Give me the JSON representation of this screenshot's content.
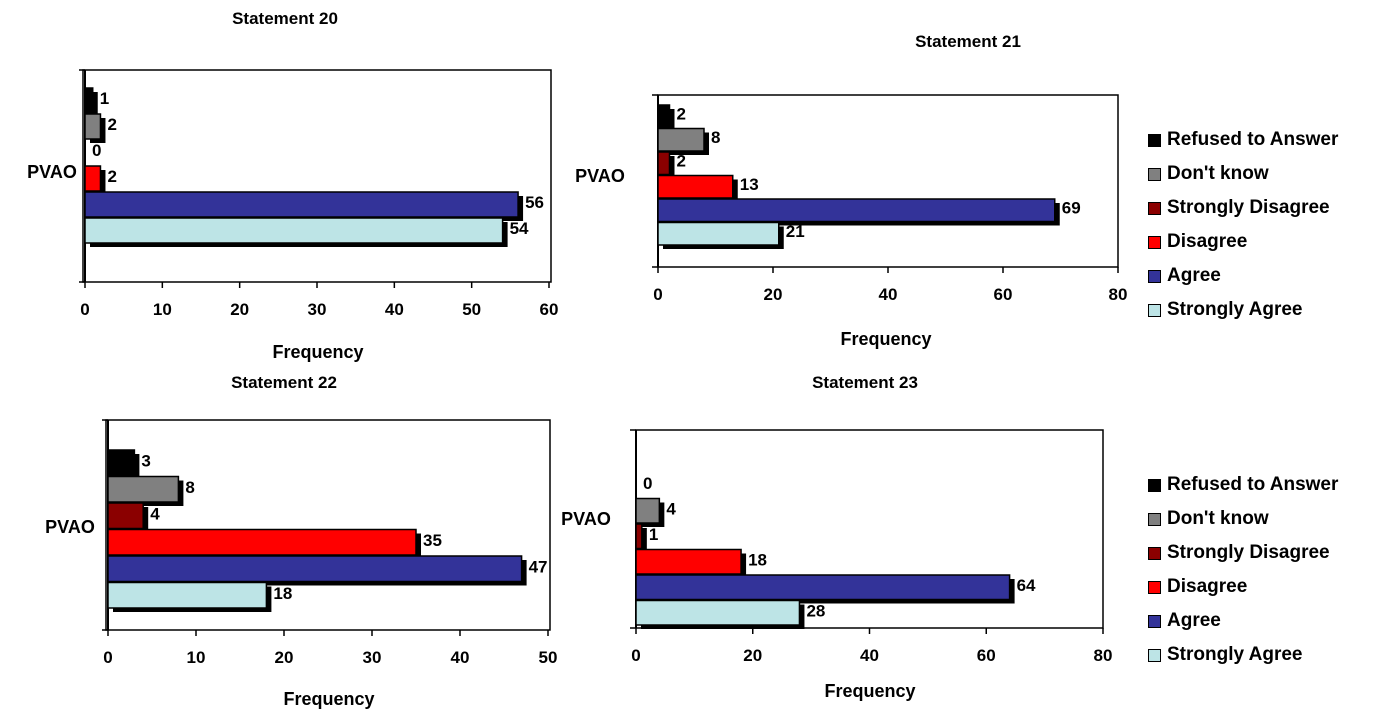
{
  "legend": [
    {
      "label": "Refused to Answer",
      "color": "#000000"
    },
    {
      "label": "Don't know",
      "color": "#808080"
    },
    {
      "label": "Strongly Disagree",
      "color": "#8b0000"
    },
    {
      "label": "Disagree",
      "color": "#ff0000"
    },
    {
      "label": "Agree",
      "color": "#333399"
    },
    {
      "label": "Strongly Agree",
      "color": "#bde4e6"
    }
  ],
  "chart_data": [
    {
      "type": "bar",
      "orientation": "horizontal",
      "title": "Statement 20",
      "xlabel": "Frequency",
      "category_label": "PVAO",
      "xlim": [
        0,
        60
      ],
      "xticks": [
        0,
        10,
        20,
        30,
        40,
        50,
        60
      ],
      "series": [
        {
          "name": "Refused to Answer",
          "value": 1
        },
        {
          "name": "Don't know",
          "value": 2
        },
        {
          "name": "Strongly Disagree",
          "value": 0
        },
        {
          "name": "Disagree",
          "value": 2
        },
        {
          "name": "Agree",
          "value": 56
        },
        {
          "name": "Strongly Agree",
          "value": 54
        }
      ]
    },
    {
      "type": "bar",
      "orientation": "horizontal",
      "title": "Statement 21",
      "xlabel": "Frequency",
      "category_label": "PVAO",
      "xlim": [
        0,
        80
      ],
      "xticks": [
        0,
        20,
        40,
        60,
        80
      ],
      "series": [
        {
          "name": "Refused to Answer",
          "value": 2
        },
        {
          "name": "Don't know",
          "value": 8
        },
        {
          "name": "Strongly Disagree",
          "value": 2
        },
        {
          "name": "Disagree",
          "value": 13
        },
        {
          "name": "Agree",
          "value": 69
        },
        {
          "name": "Strongly Agree",
          "value": 21
        }
      ]
    },
    {
      "type": "bar",
      "orientation": "horizontal",
      "title": "Statement 22",
      "xlabel": "Frequency",
      "category_label": "PVAO",
      "xlim": [
        0,
        50
      ],
      "xticks": [
        0,
        10,
        20,
        30,
        40,
        50
      ],
      "series": [
        {
          "name": "Refused to Answer",
          "value": 3
        },
        {
          "name": "Don't know",
          "value": 8
        },
        {
          "name": "Strongly Disagree",
          "value": 4
        },
        {
          "name": "Disagree",
          "value": 35
        },
        {
          "name": "Agree",
          "value": 47
        },
        {
          "name": "Strongly Agree",
          "value": 18
        }
      ]
    },
    {
      "type": "bar",
      "orientation": "horizontal",
      "title": "Statement 23",
      "xlabel": "Frequency",
      "category_label": "PVAO",
      "xlim": [
        0,
        80
      ],
      "xticks": [
        0,
        20,
        40,
        60,
        80
      ],
      "series": [
        {
          "name": "Refused to Answer",
          "value": 0
        },
        {
          "name": "Don't know",
          "value": 4
        },
        {
          "name": "Strongly Disagree",
          "value": 1
        },
        {
          "name": "Disagree",
          "value": 18
        },
        {
          "name": "Agree",
          "value": 64
        },
        {
          "name": "Strongly Agree",
          "value": 28
        }
      ]
    }
  ]
}
